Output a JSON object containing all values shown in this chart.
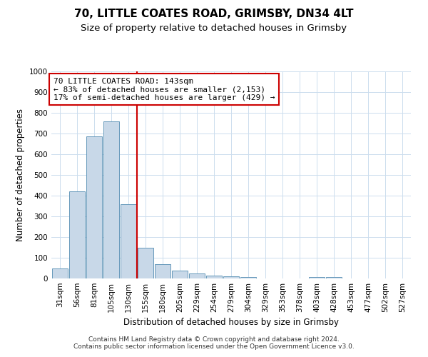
{
  "title1": "70, LITTLE COATES ROAD, GRIMSBY, DN34 4LT",
  "title2": "Size of property relative to detached houses in Grimsby",
  "xlabel": "Distribution of detached houses by size in Grimsby",
  "ylabel": "Number of detached properties",
  "categories": [
    "31sqm",
    "56sqm",
    "81sqm",
    "105sqm",
    "130sqm",
    "155sqm",
    "180sqm",
    "205sqm",
    "229sqm",
    "254sqm",
    "279sqm",
    "304sqm",
    "329sqm",
    "353sqm",
    "378sqm",
    "403sqm",
    "428sqm",
    "453sqm",
    "477sqm",
    "502sqm",
    "527sqm"
  ],
  "values": [
    50,
    420,
    685,
    760,
    360,
    150,
    70,
    37,
    25,
    15,
    10,
    8,
    0,
    0,
    0,
    8,
    8,
    0,
    0,
    0,
    0
  ],
  "bar_color": "#c8d8e8",
  "bar_edge_color": "#6699bb",
  "vline_x": 4.5,
  "vline_color": "#cc0000",
  "ylim": [
    0,
    1000
  ],
  "yticks": [
    0,
    100,
    200,
    300,
    400,
    500,
    600,
    700,
    800,
    900,
    1000
  ],
  "annotation_text": "70 LITTLE COATES ROAD: 143sqm\n← 83% of detached houses are smaller (2,153)\n17% of semi-detached houses are larger (429) →",
  "annotation_box_color": "#ffffff",
  "annotation_border_color": "#cc0000",
  "footer_text": "Contains HM Land Registry data © Crown copyright and database right 2024.\nContains public sector information licensed under the Open Government Licence v3.0.",
  "bg_color": "#ffffff",
  "grid_color": "#ccddee",
  "title1_fontsize": 11,
  "title2_fontsize": 9.5,
  "xlabel_fontsize": 8.5,
  "ylabel_fontsize": 8.5,
  "tick_fontsize": 7.5,
  "annotation_fontsize": 8,
  "footer_fontsize": 6.5
}
